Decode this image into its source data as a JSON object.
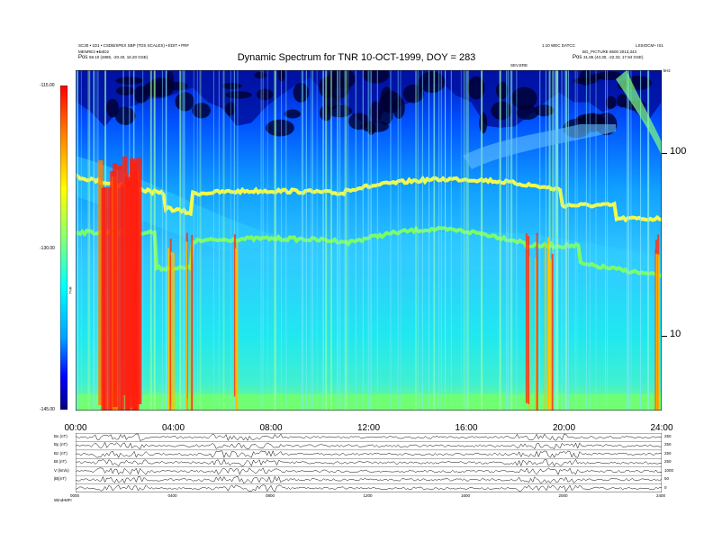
{
  "header": {
    "left_line1": "SC30 • 1D1 • CSDB/SPEX SBP (TDS SCALES) • EDIT • PRF",
    "left_line2": "MENRE3 ●B4D2",
    "pos_left_prefix": "Pos",
    "pos_left_value": "58.10 (4885, -20.40, 16.20 GSE)",
    "right_line1": "1:10 WEC DATCC",
    "right_line2": "BG_PICTURE 8600 2013,343",
    "pos_right_prefix": "Pos",
    "pos_right_value": "31.85 (43.30, -22.33, 17.84 GSE)",
    "right_code": "LSSIOCM+ IS1",
    "tiny_mark": "SEV.ERE",
    "khz_label": "kHz",
    "z_label": "TNR"
  },
  "chart_data": {
    "type": "heatmap",
    "title": "Dynamic Spectrum for TNR 10-OCT-1999, DOY = 283",
    "x_ticks": [
      "00:00",
      "04:00",
      "08:00",
      "12:00",
      "16:00",
      "20:00",
      "24:00"
    ],
    "x_range_hours": [
      0,
      24
    ],
    "y_scale": "log",
    "y_range_khz": [
      4,
      220
    ],
    "y_ticks": [
      "10",
      "100"
    ],
    "color_range_db": [
      -145,
      -115
    ],
    "color_ticks": [
      "-115.00",
      "-130.00",
      "-145.00"
    ],
    "colormap": [
      "#000080",
      "#0000ff",
      "#00a0ff",
      "#00ffff",
      "#80ff80",
      "#ffff00",
      "#ff8000",
      "#ff0000"
    ],
    "features": {
      "background_level": "cyan",
      "lower_band_color": "#80ff60",
      "upper_band_color": "#ffff40",
      "storm_color": "#ff2010",
      "quiet_region_color": "#000030"
    }
  },
  "aux_panels": {
    "rows": [
      {
        "label": "Bx (nT)",
        "right": "250"
      },
      {
        "label": "By (nT)",
        "right": "250"
      },
      {
        "label": "Bz (nT)",
        "right": "250"
      },
      {
        "label": "Bt (nT)",
        "right": "250"
      },
      {
        "label": "V (km/s)",
        "right": "1000"
      },
      {
        "label": "|B|(nT)",
        "right": "50"
      },
      {
        "label": "",
        "right": "0"
      }
    ],
    "x_ticks": [
      "0000",
      "0400",
      "0800",
      "1200",
      "1600",
      "2000",
      "2400"
    ],
    "footer_label": "Wind•MFI"
  }
}
